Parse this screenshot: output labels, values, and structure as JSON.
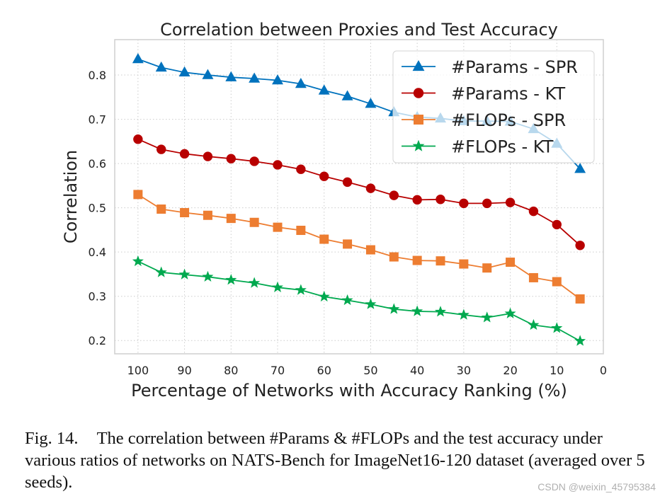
{
  "chart_data": {
    "type": "line",
    "title": "Correlation between Proxies and Test Accuracy",
    "xlabel": "Percentage of Networks with Accuracy Ranking (%)",
    "ylabel": "Correlation",
    "x": [
      100,
      95,
      90,
      85,
      80,
      75,
      70,
      65,
      60,
      55,
      50,
      45,
      40,
      35,
      30,
      25,
      20,
      15,
      10,
      5
    ],
    "xlim": [
      105,
      0
    ],
    "ylim": [
      0.17,
      0.88
    ],
    "xticks": [
      100,
      90,
      80,
      70,
      60,
      50,
      40,
      30,
      20,
      10,
      0
    ],
    "yticks": [
      0.2,
      0.3,
      0.4,
      0.5,
      0.6,
      0.7,
      0.8
    ],
    "grid": true,
    "legend_position": "top-right",
    "series": [
      {
        "name": "#Params - SPR",
        "color": "#0072bd",
        "marker": "triangle",
        "values": [
          0.836,
          0.817,
          0.806,
          0.8,
          0.795,
          0.792,
          0.788,
          0.78,
          0.765,
          0.752,
          0.735,
          0.716,
          0.705,
          0.702,
          0.696,
          0.696,
          0.695,
          0.678,
          0.645,
          0.588
        ]
      },
      {
        "name": "#Params - KT",
        "color": "#b80000",
        "marker": "circle",
        "values": [
          0.655,
          0.632,
          0.622,
          0.616,
          0.611,
          0.605,
          0.597,
          0.587,
          0.571,
          0.558,
          0.544,
          0.528,
          0.518,
          0.519,
          0.51,
          0.51,
          0.512,
          0.492,
          0.462,
          0.415
        ]
      },
      {
        "name": "#FLOPs - SPR",
        "color": "#ed7d31",
        "marker": "square",
        "values": [
          0.53,
          0.497,
          0.489,
          0.483,
          0.476,
          0.467,
          0.456,
          0.449,
          0.429,
          0.418,
          0.405,
          0.389,
          0.381,
          0.38,
          0.373,
          0.364,
          0.377,
          0.342,
          0.333,
          0.294
        ]
      },
      {
        "name": "#FLOPs - KT",
        "color": "#00a94f",
        "marker": "star",
        "values": [
          0.379,
          0.354,
          0.349,
          0.344,
          0.337,
          0.33,
          0.32,
          0.314,
          0.299,
          0.291,
          0.282,
          0.271,
          0.266,
          0.265,
          0.258,
          0.252,
          0.261,
          0.235,
          0.228,
          0.199
        ]
      }
    ]
  },
  "caption": {
    "label": "Fig. 14.",
    "text": "The correlation between #Params & #FLOPs and the test accuracy under various ratios of networks on NATS-Bench for ImageNet16-120 dataset (averaged over 5 seeds)."
  },
  "watermark": "CSDN @weixin_45795384",
  "colors": {
    "grid": "#cccccc",
    "frame": "#cfcfcf",
    "text": "#222222"
  }
}
